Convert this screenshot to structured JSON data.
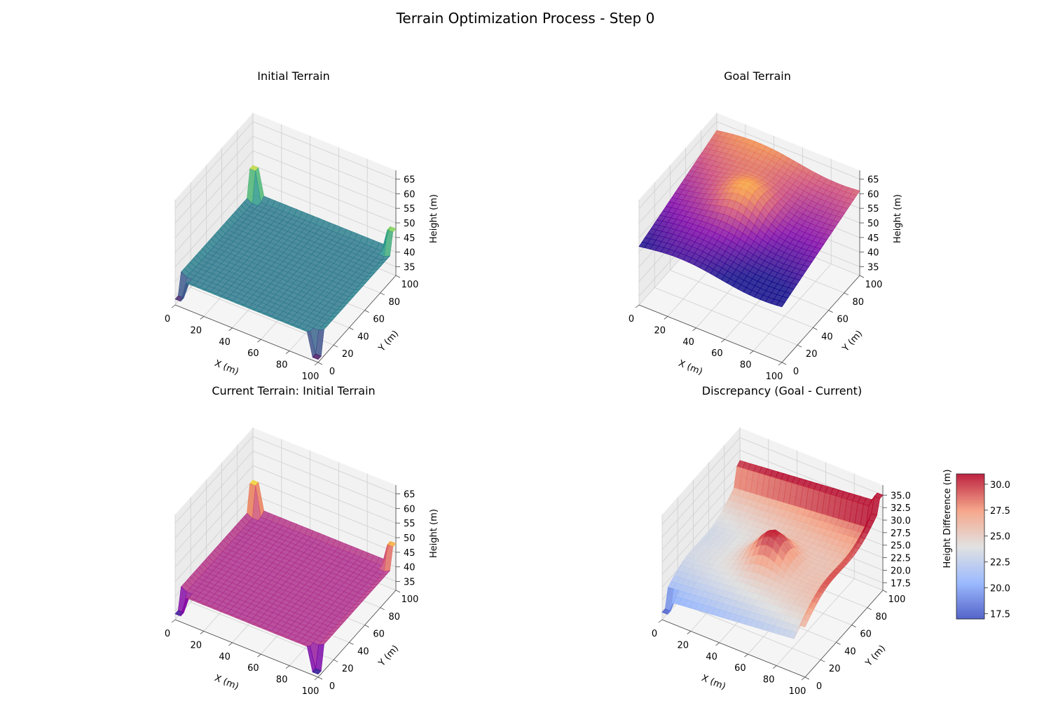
{
  "figure": {
    "title": "Terrain Optimization Process - Step 0"
  },
  "chart_data": [
    {
      "type": "surface3d",
      "title": "Initial Terrain",
      "colormap": "viridis",
      "xlabel": "X (m)",
      "ylabel": "Y (m)",
      "zlabel": "Height (m)",
      "xlim": [
        0,
        100
      ],
      "ylim": [
        0,
        100
      ],
      "zlim": [
        32,
        68
      ],
      "xticks": [
        "0",
        "20",
        "40",
        "60",
        "80",
        "100"
      ],
      "yticks": [
        "0",
        "20",
        "40",
        "60",
        "80",
        "100"
      ],
      "zticks": [
        "35",
        "40",
        "45",
        "50",
        "55",
        "60",
        "65"
      ],
      "surface": {
        "base_height": 40,
        "rim_height": 41,
        "corner_spikes": [
          50,
          48,
          33,
          34
        ]
      }
    },
    {
      "type": "surface3d",
      "title": "Goal Terrain",
      "colormap": "plasma",
      "xlabel": "X (m)",
      "ylabel": "Y (m)",
      "zlabel": "Height (m)",
      "xlim": [
        0,
        100
      ],
      "ylim": [
        0,
        100
      ],
      "zlim": [
        32,
        68
      ],
      "xticks": [
        "0",
        "20",
        "40",
        "60",
        "80",
        "100"
      ],
      "yticks": [
        "0",
        "20",
        "40",
        "60",
        "80",
        "100"
      ],
      "zticks": [
        "35",
        "40",
        "45",
        "50",
        "55",
        "60",
        "65"
      ],
      "surface": {
        "min_height": 52,
        "max_height": 68,
        "peak_height": 67,
        "slope": "rising toward high Y"
      }
    },
    {
      "type": "surface3d",
      "title": "Current Terrain: Initial Terrain",
      "colormap": "plasma",
      "xlabel": "X (m)",
      "ylabel": "Y (m)",
      "zlabel": "Height (m)",
      "xlim": [
        0,
        100
      ],
      "ylim": [
        0,
        100
      ],
      "zlim": [
        32,
        68
      ],
      "xticks": [
        "0",
        "20",
        "40",
        "60",
        "80",
        "100"
      ],
      "yticks": [
        "0",
        "20",
        "40",
        "60",
        "80",
        "100"
      ],
      "zticks": [
        "35",
        "40",
        "45",
        "50",
        "55",
        "60",
        "65"
      ],
      "surface": {
        "base_height": 40,
        "rim_height": 41,
        "corner_spikes": [
          50,
          48,
          33,
          34
        ]
      }
    },
    {
      "type": "surface3d",
      "title": "Discrepancy (Goal - Current)",
      "colormap": "coolwarm",
      "xlabel": "X (m)",
      "ylabel": "Y (m)",
      "zlabel": "",
      "xlim": [
        0,
        100
      ],
      "ylim": [
        0,
        100
      ],
      "zlim": [
        16,
        37
      ],
      "xticks": [
        "0",
        "20",
        "40",
        "60",
        "80",
        "100"
      ],
      "yticks": [
        "0",
        "20",
        "40",
        "60",
        "80",
        "100"
      ],
      "zticks": [
        "17.5",
        "20.0",
        "22.5",
        "25.0",
        "27.5",
        "30.0",
        "32.5",
        "35.0"
      ],
      "surface": {
        "min_diff": 17.5,
        "max_diff": 35,
        "center_bump": 31
      },
      "colorbar": {
        "label": "Height Difference (m)",
        "range": [
          17,
          31
        ],
        "ticks": [
          "17.5",
          "20.0",
          "22.5",
          "25.0",
          "27.5",
          "30.0"
        ]
      }
    }
  ]
}
